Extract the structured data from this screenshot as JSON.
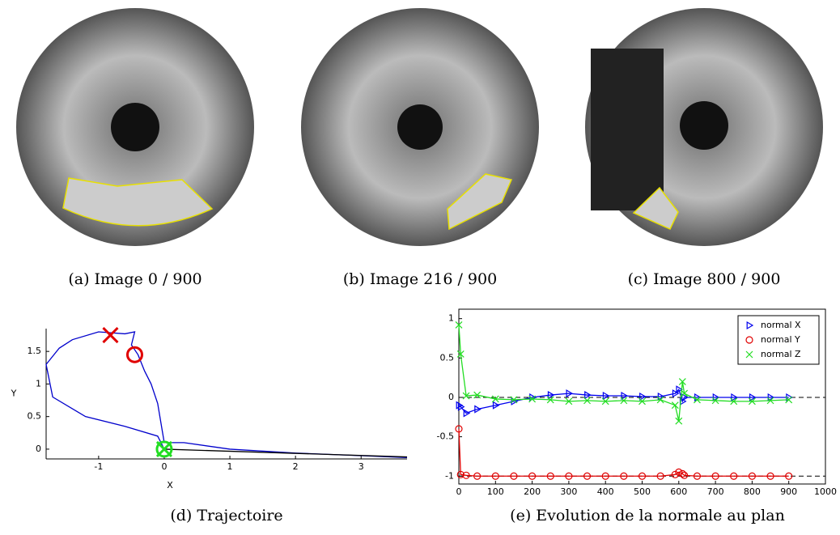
{
  "images": [
    {
      "caption": "(a) Image 0 / 900"
    },
    {
      "caption": "(b) Image 216 / 900"
    },
    {
      "caption": "(c) Image 800 / 900"
    }
  ],
  "chart_data": [
    {
      "type": "line",
      "caption": "(d) Trajectoire",
      "xlabel": "X",
      "ylabel": "Y",
      "xlim": [
        -1.8,
        3.7
      ],
      "ylim": [
        -0.15,
        1.85
      ],
      "xticks": [
        -1,
        0,
        1,
        2,
        3
      ],
      "yticks": [
        0,
        0.5,
        1,
        1.5
      ],
      "series": [
        {
          "color": "#0000cc",
          "x": [
            0,
            -0.1,
            -0.6,
            -1.2,
            -1.7,
            -1.8,
            -1.6,
            -1.4,
            -1.0,
            -0.6,
            -0.45,
            -0.5,
            -0.4,
            -0.3,
            -0.2,
            -0.1,
            -0.05,
            0,
            0.3,
            1,
            2,
            3,
            3.7
          ],
          "values": [
            0,
            0.2,
            0.35,
            0.5,
            0.8,
            1.3,
            1.55,
            1.68,
            1.8,
            1.77,
            1.8,
            1.6,
            1.45,
            1.2,
            1.0,
            0.7,
            0.4,
            0.1,
            0.1,
            0.0,
            -0.06,
            -0.1,
            -0.13
          ]
        },
        {
          "color": "#000000",
          "x": [
            0,
            3.7
          ],
          "values": [
            0,
            -0.12
          ]
        }
      ],
      "points": [
        {
          "x": -0.82,
          "y": 1.75,
          "marker": "x",
          "color": "#e00000"
        },
        {
          "x": -0.45,
          "y": 1.45,
          "marker": "circle",
          "color": "#e00000"
        },
        {
          "x": 0,
          "y": 0,
          "marker": "circle",
          "color": "#22dd22"
        },
        {
          "x": 0,
          "y": 0,
          "marker": "x",
          "color": "#22dd22"
        }
      ]
    },
    {
      "type": "line",
      "caption": "(e) Evolution de la normale au plan",
      "xlim": [
        0,
        1000
      ],
      "ylim": [
        -1.1,
        1.12
      ],
      "xticks": [
        0,
        100,
        200,
        300,
        400,
        500,
        600,
        700,
        800,
        900,
        1000
      ],
      "yticks": [
        -1,
        -0.5,
        0,
        0.5,
        1
      ],
      "hlines": [
        0,
        -1
      ],
      "legend": "top-right",
      "x": [
        0,
        5,
        20,
        50,
        100,
        150,
        200,
        250,
        300,
        350,
        400,
        450,
        500,
        550,
        590,
        600,
        610,
        615,
        650,
        700,
        750,
        800,
        850,
        900
      ],
      "series": [
        {
          "name": "normal X",
          "color": "#0000ee",
          "marker": "triangle",
          "values": [
            -0.1,
            -0.12,
            -0.2,
            -0.15,
            -0.1,
            -0.05,
            0,
            0.03,
            0.05,
            0.03,
            0.02,
            0.02,
            0.01,
            0.01,
            0.05,
            0.1,
            -0.05,
            0,
            0,
            0,
            0,
            0,
            0,
            0
          ]
        },
        {
          "name": "normal Y",
          "color": "#e00000",
          "marker": "circle",
          "values": [
            -0.4,
            -0.98,
            -0.99,
            -1,
            -1,
            -1,
            -1,
            -1,
            -1,
            -1,
            -1,
            -1,
            -1,
            -1,
            -0.98,
            -0.95,
            -0.97,
            -0.99,
            -1,
            -1,
            -1,
            -1,
            -1,
            -1
          ]
        },
        {
          "name": "normal Z",
          "color": "#22dd22",
          "marker": "x",
          "values": [
            0.92,
            0.55,
            0.02,
            0.03,
            -0.02,
            -0.03,
            -0.02,
            -0.03,
            -0.05,
            -0.04,
            -0.05,
            -0.04,
            -0.05,
            -0.03,
            -0.1,
            -0.3,
            0.2,
            0.05,
            -0.03,
            -0.04,
            -0.05,
            -0.05,
            -0.04,
            -0.03
          ]
        }
      ]
    }
  ]
}
